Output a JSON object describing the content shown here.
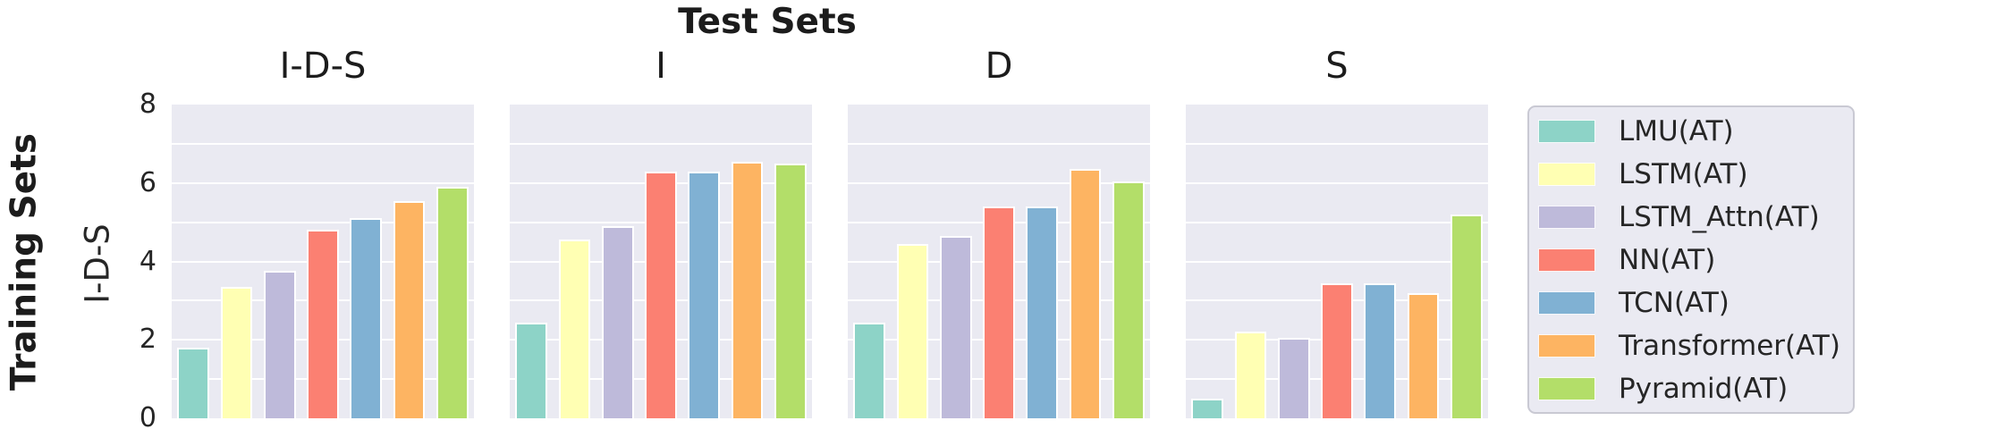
{
  "chart_data": {
    "type": "bar",
    "title": "Test Sets",
    "row_title": "Training Sets",
    "ylabel": "I-D-S",
    "ylim": [
      0,
      8
    ],
    "yticks": [
      "0",
      "2",
      "4",
      "6",
      "8"
    ],
    "grid": true,
    "grid_interval": 1,
    "legend_position": "right-outside",
    "panels": [
      "I-D-S",
      "I",
      "D",
      "S"
    ],
    "series": [
      {
        "name": "LMU(AT)",
        "color": "#8dd3c7",
        "values": [
          1.8,
          2.45,
          2.45,
          0.5
        ]
      },
      {
        "name": "LSTM(AT)",
        "color": "#ffffb3",
        "values": [
          3.35,
          4.55,
          4.45,
          2.2
        ]
      },
      {
        "name": "LSTM_Attn(AT)",
        "color": "#bebada",
        "values": [
          3.75,
          4.9,
          4.65,
          2.05
        ]
      },
      {
        "name": "NN(AT)",
        "color": "#fb8072",
        "values": [
          4.8,
          6.3,
          5.4,
          3.45
        ]
      },
      {
        "name": "TCN(AT)",
        "color": "#80b1d3",
        "values": [
          5.1,
          6.3,
          5.4,
          3.45
        ]
      },
      {
        "name": "Transformer(AT)",
        "color": "#fdb462",
        "values": [
          5.55,
          6.55,
          6.35,
          3.2
        ]
      },
      {
        "name": "Pyramid(AT)",
        "color": "#b3de69",
        "values": [
          5.9,
          6.5,
          6.05,
          5.2
        ]
      }
    ],
    "style": {
      "plot_background": "#eaeaf2",
      "grid_color": "#ffffff",
      "text_color": "#262626",
      "legend_background": "#eaeaf2",
      "legend_border": "#c9c9d3"
    }
  }
}
